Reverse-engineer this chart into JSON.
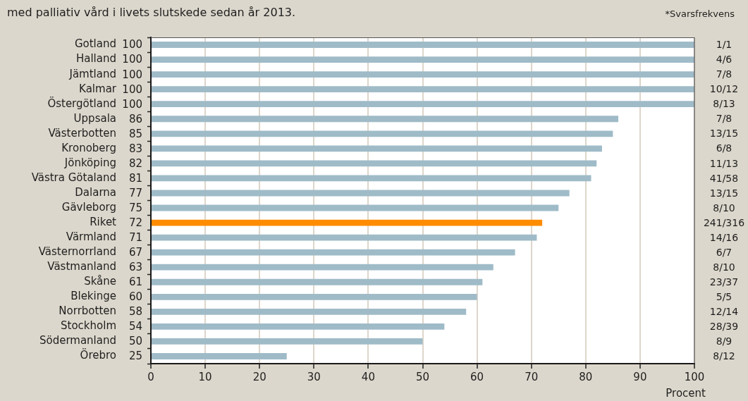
{
  "chart_data": {
    "type": "bar",
    "orientation": "horizontal",
    "title": "med palliativ vård i livets slutskede sedan år 2013.",
    "xlabel": "Procent",
    "categories": [
      "Gotland",
      "Halland",
      "Jämtland",
      "Kalmar",
      "Östergötland",
      "Uppsala",
      "Västerbotten",
      "Kronoberg",
      "Jönköping",
      "Västra Götaland",
      "Dalarna",
      "Gävleborg",
      "Riket",
      "Värmland",
      "Västernorrland",
      "Västmanland",
      "Skåne",
      "Blekinge",
      "Norrbotten",
      "Stockholm",
      "Södermanland",
      "Örebro"
    ],
    "values": [
      100,
      100,
      100,
      100,
      100,
      86,
      85,
      83,
      82,
      81,
      77,
      75,
      72,
      71,
      67,
      63,
      61,
      60,
      58,
      54,
      50,
      25
    ],
    "colors": [
      "#9fbbc8",
      "#9fbbc8",
      "#9fbbc8",
      "#9fbbc8",
      "#9fbbc8",
      "#9fbbc8",
      "#9fbbc8",
      "#9fbbc8",
      "#9fbbc8",
      "#9fbbc8",
      "#9fbbc8",
      "#9fbbc8",
      "#ff8c00",
      "#9fbbc8",
      "#9fbbc8",
      "#9fbbc8",
      "#9fbbc8",
      "#9fbbc8",
      "#9fbbc8",
      "#9fbbc8",
      "#9fbbc8",
      "#9fbbc8"
    ],
    "xlim": [
      0,
      100
    ],
    "xticks": [
      0,
      10,
      20,
      30,
      40,
      50,
      60,
      70,
      80,
      90,
      100
    ],
    "grid": "x",
    "data_labels": true,
    "annotations": [
      "*Svarsfrekvens",
      "1/1",
      "4/6",
      "7/8",
      "10/12",
      "8/13",
      "7/8",
      "13/15",
      "6/8",
      "11/13",
      "41/58",
      "13/15",
      "8/10",
      "241/316",
      "14/16",
      "6/7",
      "8/10",
      "23/37",
      "5/5",
      "12/14",
      "28/39",
      "8/9",
      "8/12"
    ]
  }
}
